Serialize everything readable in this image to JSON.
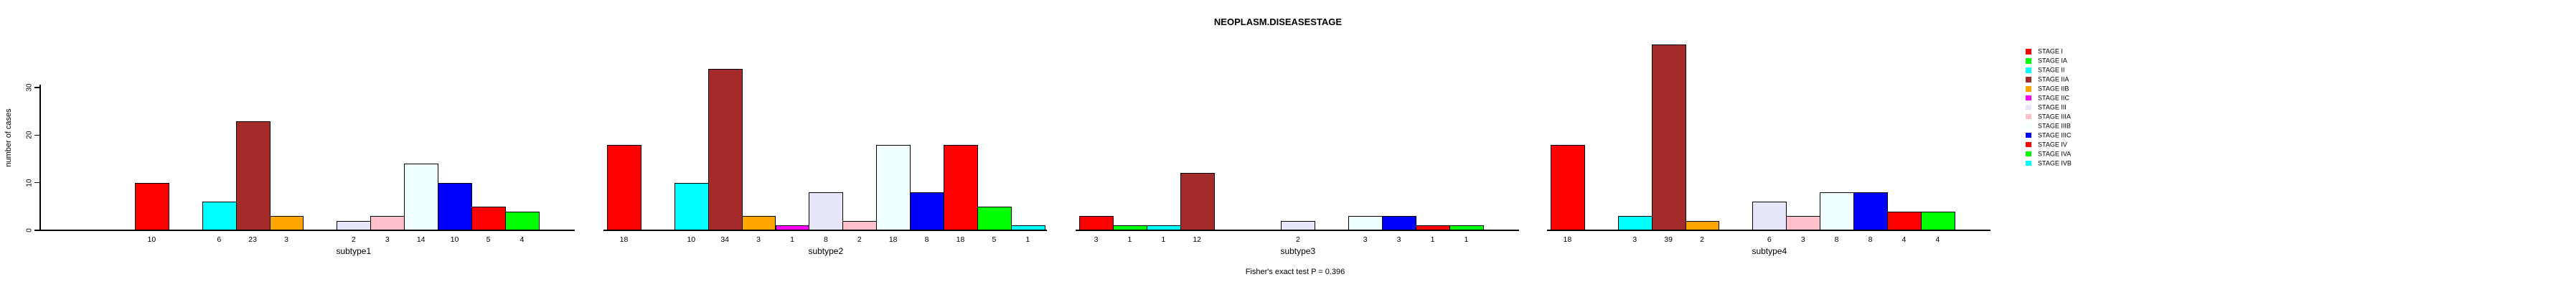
{
  "title": "NEOPLASM.DISEASESTAGE",
  "footer_note": "Fisher's exact test P = 0.396",
  "chart_data": {
    "type": "bar",
    "title": "NEOPLASM.DISEASESTAGE",
    "xlabel": "",
    "ylabel": "number of cases",
    "ylim": [
      0,
      30
    ],
    "yticks": [
      0,
      10,
      20,
      30
    ],
    "grid": false,
    "legend_position": "right",
    "annotation": "Fisher's exact test P = 0.396",
    "categories": [
      "STAGE I",
      "STAGE IA",
      "STAGE II",
      "STAGE IIA",
      "STAGE IIB",
      "STAGE IIC",
      "STAGE III",
      "STAGE IIIA",
      "STAGE IIIB",
      "STAGE IIIC",
      "STAGE IV",
      "STAGE IVA",
      "STAGE IVB"
    ],
    "colors": [
      "#FF0000",
      "#00FF00",
      "#00FFFF",
      "#A52A2A",
      "#FFA500",
      "#FF00FF",
      "#E6E6FA",
      "#FFC0CB",
      "#F0FFFF",
      "#0000FF",
      "#FF0000",
      "#00FF00",
      "#00FFFF"
    ],
    "series": [
      {
        "name": "subtype1",
        "values": [
          10,
          0,
          6,
          23,
          3,
          0,
          2,
          3,
          14,
          10,
          5,
          4,
          0
        ]
      },
      {
        "name": "subtype2",
        "values": [
          18,
          0,
          10,
          34,
          3,
          1,
          8,
          2,
          18,
          8,
          18,
          5,
          1
        ]
      },
      {
        "name": "subtype3",
        "values": [
          3,
          1,
          1,
          12,
          0,
          0,
          2,
          0,
          3,
          3,
          1,
          1,
          0
        ]
      },
      {
        "name": "subtype4",
        "values": [
          18,
          0,
          3,
          39,
          2,
          0,
          6,
          3,
          8,
          8,
          4,
          4,
          0
        ]
      }
    ]
  }
}
